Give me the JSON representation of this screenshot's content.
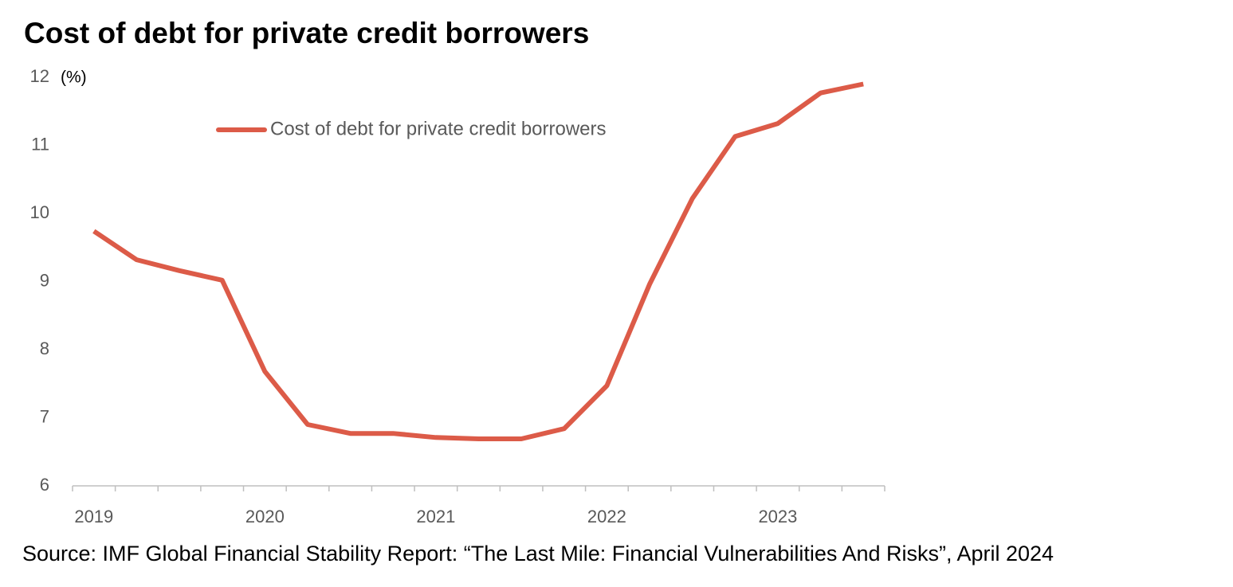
{
  "chart_data": {
    "type": "line",
    "title": "Cost of debt for private credit borrowers",
    "y_unit_label": "(%)",
    "categories": [
      "2019",
      null,
      null,
      null,
      "2020",
      null,
      null,
      null,
      "2021",
      null,
      null,
      null,
      "2022",
      null,
      null,
      null,
      "2023",
      null,
      null
    ],
    "series": [
      {
        "name": "Cost of debt for private credit borrowers",
        "color": "#dc5b48",
        "values": [
          9.74,
          9.32,
          9.16,
          9.02,
          7.68,
          6.9,
          6.77,
          6.77,
          6.71,
          6.69,
          6.69,
          6.84,
          7.47,
          8.96,
          10.22,
          11.13,
          11.32,
          11.77,
          11.9
        ]
      }
    ],
    "ylim": [
      6,
      12
    ],
    "yticks": [
      6,
      7,
      8,
      9,
      10,
      11,
      12
    ],
    "grid": false,
    "source": "Source: IMF Global Financial Stability Report: “The Last Mile: Financial Vulnerabilities And Risks”, April 2024"
  }
}
